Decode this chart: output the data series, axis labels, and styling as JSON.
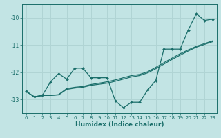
{
  "title": "",
  "xlabel": "Humidex (Indice chaleur)",
  "bg_color": "#c2e4e4",
  "grid_color": "#b0d4d4",
  "line_color": "#1a6e6a",
  "xlim": [
    -0.5,
    23.5
  ],
  "ylim": [
    -13.5,
    -9.5
  ],
  "yticks": [
    -13,
    -12,
    -11,
    -10
  ],
  "xticks": [
    0,
    1,
    2,
    3,
    4,
    5,
    6,
    7,
    8,
    9,
    10,
    11,
    12,
    13,
    14,
    15,
    16,
    17,
    18,
    19,
    20,
    21,
    22,
    23
  ],
  "line1_x": [
    0,
    1,
    2,
    3,
    4,
    5,
    6,
    7,
    8,
    9,
    10,
    11,
    12,
    13,
    14,
    15,
    16,
    17,
    18,
    19,
    20,
    21,
    22,
    23
  ],
  "line1_y": [
    -12.7,
    -12.9,
    -12.85,
    -12.35,
    -12.05,
    -12.25,
    -11.85,
    -11.85,
    -12.2,
    -12.2,
    -12.2,
    -13.05,
    -13.3,
    -13.1,
    -13.1,
    -12.65,
    -12.3,
    -11.15,
    -11.15,
    -11.15,
    -10.45,
    -9.85,
    -10.1,
    -10.05
  ],
  "line2_x": [
    0,
    1,
    2,
    3,
    4,
    5,
    6,
    7,
    8,
    9,
    10,
    11,
    12,
    13,
    14,
    15,
    16,
    17,
    18,
    19,
    20,
    21,
    22,
    23
  ],
  "line2_y": [
    -12.7,
    -12.9,
    -12.85,
    -12.85,
    -12.82,
    -12.6,
    -12.55,
    -12.52,
    -12.45,
    -12.4,
    -12.35,
    -12.28,
    -12.2,
    -12.12,
    -12.08,
    -11.98,
    -11.82,
    -11.65,
    -11.48,
    -11.32,
    -11.18,
    -11.05,
    -10.95,
    -10.85
  ],
  "line3_x": [
    0,
    1,
    2,
    3,
    4,
    5,
    6,
    7,
    8,
    9,
    10,
    11,
    12,
    13,
    14,
    15,
    16,
    17,
    18,
    19,
    20,
    21,
    22,
    23
  ],
  "line3_y": [
    -12.7,
    -12.9,
    -12.85,
    -12.85,
    -12.83,
    -12.63,
    -12.58,
    -12.55,
    -12.48,
    -12.44,
    -12.4,
    -12.33,
    -12.25,
    -12.17,
    -12.12,
    -12.02,
    -11.87,
    -11.7,
    -11.53,
    -11.37,
    -11.22,
    -11.08,
    -10.98,
    -10.88
  ]
}
